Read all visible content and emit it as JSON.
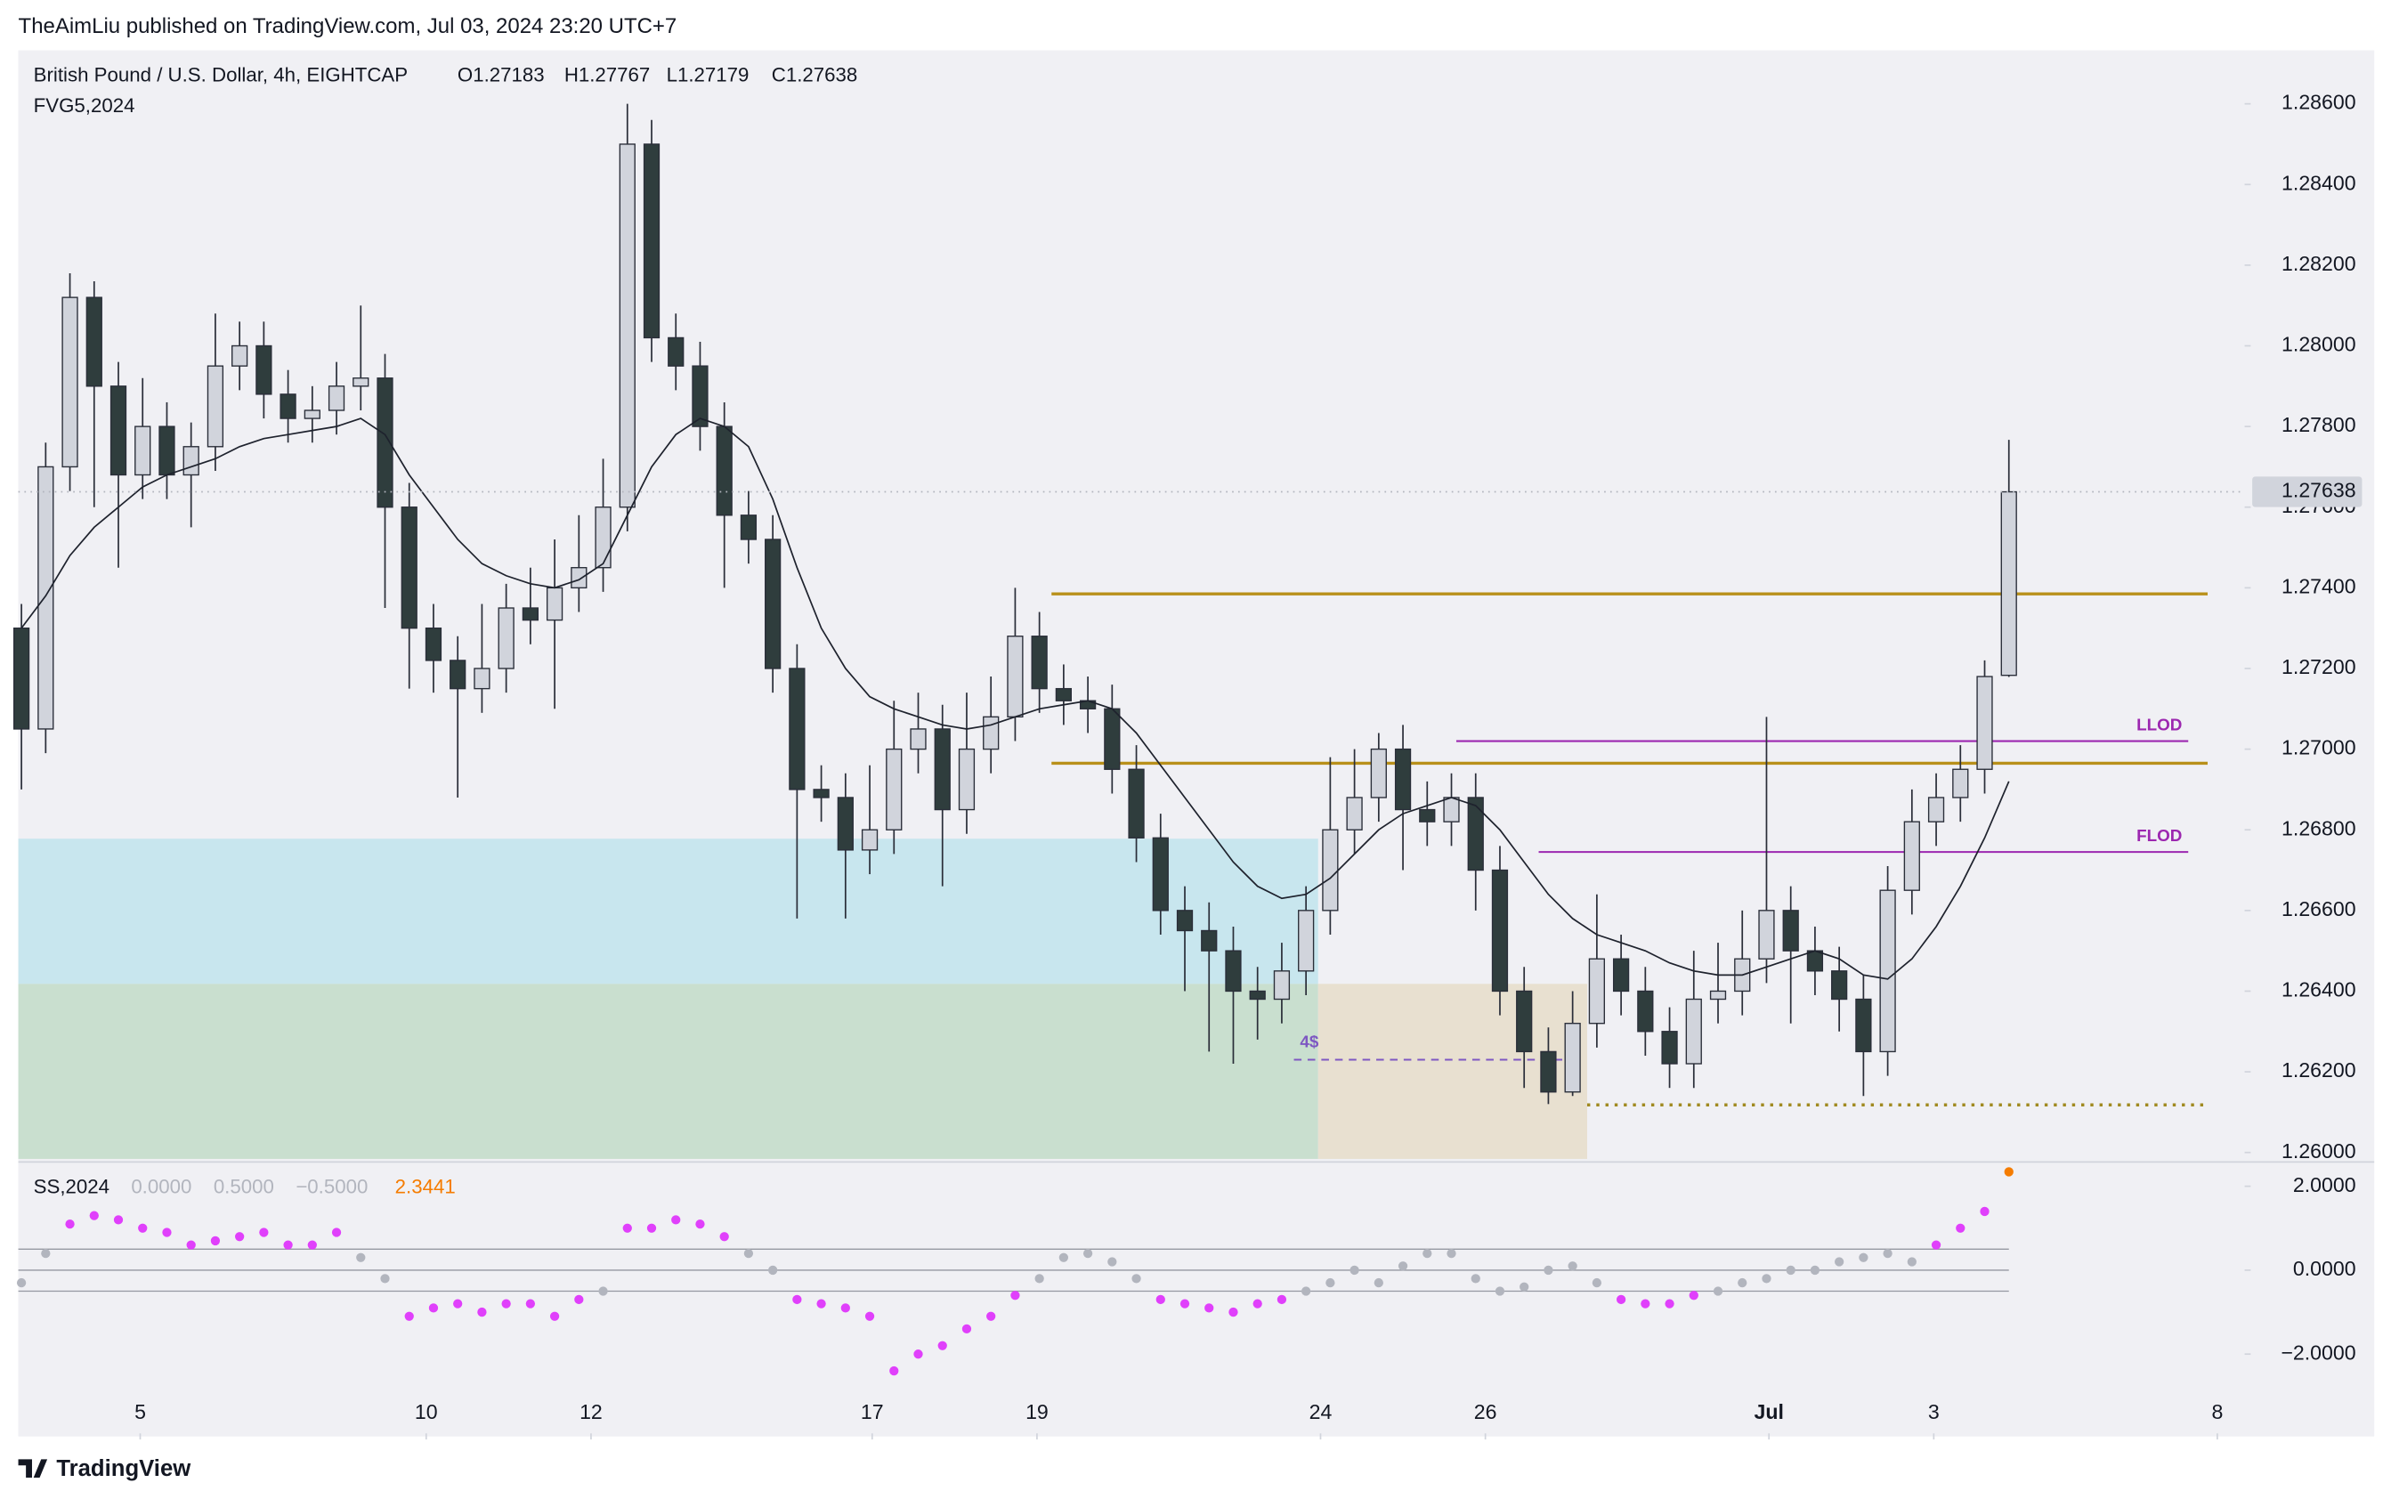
{
  "header": {
    "publisher": "TheAimLiu published on TradingView.com, Jul 03, 2024 23:20 UTC+7",
    "symbol": "British Pound / U.S. Dollar, 4h, EIGHTCAP",
    "ohlc": [
      "O1.27183",
      "H1.27767",
      "L1.27179",
      "C1.27638"
    ],
    "indicator": "FVG5,2024",
    "footer": "TradingView"
  },
  "chart_data": [
    {
      "type": "candlestick",
      "colors": {
        "up": "#d1d4dc",
        "down": "#2f3d3d",
        "outline": "#2a2e39"
      },
      "open": [
        1.273,
        1.2705,
        1.277,
        1.2812,
        1.279,
        1.2768,
        1.278,
        1.2768,
        1.2775,
        1.2795,
        1.28,
        1.2788,
        1.2782,
        1.2784,
        1.279,
        1.2792,
        1.276,
        1.273,
        1.2722,
        1.2715,
        1.272,
        1.2735,
        1.2732,
        1.274,
        1.2745,
        1.276,
        1.285,
        1.2802,
        1.2795,
        1.278,
        1.2758,
        1.2752,
        1.272,
        1.269,
        1.2688,
        1.2675,
        1.268,
        1.27,
        1.2705,
        1.2685,
        1.27,
        1.2708,
        1.2728,
        1.2715,
        1.2712,
        1.271,
        1.2695,
        1.2678,
        1.266,
        1.2655,
        1.265,
        1.264,
        1.2638,
        1.2645,
        1.266,
        1.268,
        1.2688,
        1.27,
        1.2685,
        1.2682,
        1.2688,
        1.267,
        1.264,
        1.2625,
        1.2615,
        1.2632,
        1.2648,
        1.264,
        1.263,
        1.2622,
        1.2638,
        1.264,
        1.2648,
        1.266,
        1.265,
        1.2645,
        1.2638,
        1.2625,
        1.2665,
        1.2682,
        1.2688,
        1.2695,
        1.27183
      ],
      "high": [
        1.2736,
        1.2776,
        1.2818,
        1.2816,
        1.2796,
        1.2792,
        1.2786,
        1.2781,
        1.2808,
        1.2806,
        1.2806,
        1.2794,
        1.279,
        1.2796,
        1.281,
        1.2798,
        1.2766,
        1.2736,
        1.2728,
        1.2736,
        1.2741,
        1.2745,
        1.2752,
        1.2758,
        1.2772,
        1.286,
        1.2856,
        1.2808,
        1.2801,
        1.2786,
        1.2764,
        1.2758,
        1.2726,
        1.2696,
        1.2694,
        1.2696,
        1.2712,
        1.2714,
        1.2711,
        1.2714,
        1.2718,
        1.274,
        1.2734,
        1.2721,
        1.2718,
        1.2716,
        1.2701,
        1.2684,
        1.2666,
        1.2662,
        1.2656,
        1.2646,
        1.2652,
        1.2666,
        1.2698,
        1.27,
        1.2704,
        1.2706,
        1.2692,
        1.2694,
        1.2694,
        1.2676,
        1.2646,
        1.2631,
        1.264,
        1.2664,
        1.2654,
        1.2646,
        1.2636,
        1.265,
        1.2652,
        1.266,
        1.2708,
        1.2666,
        1.2656,
        1.2651,
        1.2644,
        1.2671,
        1.269,
        1.2694,
        1.2701,
        1.2722,
        1.27767
      ],
      "low": [
        1.269,
        1.2699,
        1.2764,
        1.276,
        1.2745,
        1.2762,
        1.2762,
        1.2755,
        1.2769,
        1.2789,
        1.2782,
        1.2776,
        1.2776,
        1.2778,
        1.2784,
        1.2735,
        1.2715,
        1.2714,
        1.2688,
        1.2709,
        1.2714,
        1.2726,
        1.271,
        1.2734,
        1.2739,
        1.2754,
        1.2796,
        1.2789,
        1.2774,
        1.274,
        1.2746,
        1.2714,
        1.2658,
        1.2682,
        1.2658,
        1.2669,
        1.2674,
        1.2694,
        1.2666,
        1.2679,
        1.2694,
        1.2702,
        1.2709,
        1.2706,
        1.2704,
        1.2689,
        1.2672,
        1.2654,
        1.264,
        1.2625,
        1.2622,
        1.2628,
        1.2632,
        1.2639,
        1.2654,
        1.2674,
        1.2682,
        1.267,
        1.2676,
        1.2676,
        1.266,
        1.2634,
        1.2616,
        1.2612,
        1.2614,
        1.2626,
        1.2634,
        1.2624,
        1.2616,
        1.2616,
        1.2632,
        1.2634,
        1.2642,
        1.2632,
        1.2639,
        1.263,
        1.2614,
        1.2619,
        1.2659,
        1.2676,
        1.2682,
        1.2689,
        1.27179
      ],
      "close": [
        1.2705,
        1.277,
        1.2812,
        1.279,
        1.2768,
        1.278,
        1.2768,
        1.2775,
        1.2795,
        1.28,
        1.2788,
        1.2782,
        1.2784,
        1.279,
        1.2792,
        1.276,
        1.273,
        1.2722,
        1.2715,
        1.272,
        1.2735,
        1.2732,
        1.274,
        1.2745,
        1.276,
        1.285,
        1.2802,
        1.2795,
        1.278,
        1.2758,
        1.2752,
        1.272,
        1.269,
        1.2688,
        1.2675,
        1.268,
        1.27,
        1.2705,
        1.2685,
        1.27,
        1.2708,
        1.2728,
        1.2715,
        1.2712,
        1.271,
        1.2695,
        1.2678,
        1.266,
        1.2655,
        1.265,
        1.264,
        1.2638,
        1.2645,
        1.266,
        1.268,
        1.2688,
        1.27,
        1.2685,
        1.2682,
        1.2688,
        1.267,
        1.264,
        1.2625,
        1.2615,
        1.2632,
        1.2648,
        1.264,
        1.263,
        1.2622,
        1.2638,
        1.264,
        1.2648,
        1.266,
        1.265,
        1.2645,
        1.2638,
        1.2625,
        1.2665,
        1.2682,
        1.2688,
        1.2695,
        1.2718,
        1.27638
      ],
      "ma": {
        "color": "#1e222d",
        "values": [
          1.273,
          1.2738,
          1.2748,
          1.2755,
          1.276,
          1.2765,
          1.2768,
          1.277,
          1.2772,
          1.2775,
          1.2777,
          1.2778,
          1.2779,
          1.278,
          1.2782,
          1.2778,
          1.2768,
          1.276,
          1.2752,
          1.2746,
          1.2743,
          1.2741,
          1.274,
          1.2742,
          1.2746,
          1.2758,
          1.277,
          1.2778,
          1.2782,
          1.278,
          1.2775,
          1.2762,
          1.2745,
          1.273,
          1.272,
          1.2713,
          1.271,
          1.2708,
          1.2706,
          1.2705,
          1.2706,
          1.2708,
          1.271,
          1.2711,
          1.2712,
          1.271,
          1.2704,
          1.2696,
          1.2688,
          1.268,
          1.2672,
          1.2666,
          1.2663,
          1.2664,
          1.2668,
          1.2674,
          1.268,
          1.2684,
          1.2686,
          1.2688,
          1.2686,
          1.268,
          1.2672,
          1.2664,
          1.2658,
          1.2654,
          1.2652,
          1.265,
          1.2647,
          1.2645,
          1.2644,
          1.2644,
          1.2646,
          1.2648,
          1.265,
          1.2648,
          1.2644,
          1.2643,
          1.2648,
          1.2656,
          1.2666,
          1.2678,
          1.2692
        ]
      },
      "xlim": [
        -0.13,
        91.6
      ],
      "ylim": [
        1.25984,
        1.28725
      ],
      "xticks": [
        {
          "value": 4.9,
          "label": "5"
        },
        {
          "value": 16.7,
          "label": "10"
        },
        {
          "value": 23.5,
          "label": "12"
        },
        {
          "value": 35.1,
          "label": "17"
        },
        {
          "value": 41.9,
          "label": "19"
        },
        {
          "value": 53.6,
          "label": "24"
        },
        {
          "value": 60.4,
          "label": "26"
        },
        {
          "value": 72.1,
          "label": "Jul"
        },
        {
          "value": 78.9,
          "label": "3"
        },
        {
          "value": 90.6,
          "label": "8"
        }
      ],
      "yticks": [
        {
          "value": 1.26,
          "label": "1.26000"
        },
        {
          "value": 1.262,
          "label": "1.26200"
        },
        {
          "value": 1.264,
          "label": "1.26400"
        },
        {
          "value": 1.266,
          "label": "1.26600"
        },
        {
          "value": 1.268,
          "label": "1.26800"
        },
        {
          "value": 1.27,
          "label": "1.27000"
        },
        {
          "value": 1.272,
          "label": "1.27200"
        },
        {
          "value": 1.274,
          "label": "1.27400"
        },
        {
          "value": 1.276,
          "label": "1.27600"
        },
        {
          "value": 1.278,
          "label": "1.27800"
        },
        {
          "value": 1.28,
          "label": "1.28000"
        },
        {
          "value": 1.282,
          "label": "1.28200"
        },
        {
          "value": 1.284,
          "label": "1.28400"
        },
        {
          "value": 1.286,
          "label": "1.28600"
        }
      ],
      "zones": [
        {
          "from": -0.13,
          "to": 53.5,
          "low": 1.26418,
          "high": 1.26778,
          "color": "#c8e6ee"
        },
        {
          "from": -0.13,
          "to": 53.5,
          "low": 1.25984,
          "high": 1.26418,
          "color": "#c9dfcf"
        },
        {
          "from": 53.5,
          "to": 64.6,
          "low": 1.25984,
          "high": 1.26418,
          "color": "#e8e0d0"
        }
      ],
      "hlines": [
        {
          "value": 1.27385,
          "from": 42.5,
          "to": 90.2,
          "color": "#b8901a",
          "dash": "none"
        },
        {
          "value": 1.26965,
          "from": 42.5,
          "to": 90.2,
          "color": "#b8901a",
          "dash": "none"
        },
        {
          "name": "LLOD",
          "value": 1.2702,
          "from": 59.2,
          "to": 89.4,
          "color": "#9c27b0",
          "dash": "none"
        },
        {
          "name": "FLOD",
          "value": 1.26745,
          "from": 62.6,
          "to": 89.4,
          "color": "#9c27b0",
          "dash": "none"
        },
        {
          "value": 1.26118,
          "from": 64.6,
          "to": 90.2,
          "color": "#a08a20",
          "dash": "2 4"
        },
        {
          "name": "4$",
          "value": 1.2623,
          "from": 52.5,
          "to": 63.6,
          "color": "#7e57c2",
          "dash": "5 4"
        }
      ]
    },
    {
      "type": "dots",
      "name": "SS,2024",
      "colors": {
        "strong": "#e040fb",
        "weak": "#b2b5be"
      },
      "levels": [
        {
          "value": 0,
          "label": "0.0000"
        },
        {
          "value": 0.5,
          "label": "0.5000"
        },
        {
          "value": -0.5,
          "label": "−0.5000"
        }
      ],
      "values": [
        -0.3,
        0.4,
        1.1,
        1.3,
        1.2,
        1.0,
        0.9,
        0.6,
        0.7,
        0.8,
        0.9,
        0.6,
        0.6,
        0.9,
        0.3,
        -0.2,
        -1.1,
        -0.9,
        -0.8,
        -1.0,
        -0.8,
        -0.8,
        -1.1,
        -0.7,
        -0.5,
        1.0,
        1.0,
        1.2,
        1.1,
        0.8,
        0.4,
        0.0,
        -0.7,
        -0.8,
        -0.9,
        -1.1,
        -2.4,
        -2.0,
        -1.8,
        -1.4,
        -1.1,
        -0.6,
        -0.2,
        0.3,
        0.4,
        0.2,
        -0.2,
        -0.7,
        -0.8,
        -0.9,
        -1.0,
        -0.8,
        -0.7,
        -0.5,
        -0.3,
        0.0,
        -0.3,
        0.1,
        0.4,
        0.4,
        -0.2,
        -0.5,
        -0.4,
        0.0,
        0.1,
        -0.3,
        -0.7,
        -0.8,
        -0.8,
        -0.6,
        -0.5,
        -0.3,
        -0.2,
        0.0,
        0.0,
        0.2,
        0.3,
        0.4,
        0.2,
        0.6,
        1.0,
        1.4,
        2.3441
      ],
      "ylim": [
        -3.89,
        2.47
      ],
      "yticks": [
        {
          "value": 2,
          "label": "2.0000"
        },
        {
          "value": 0,
          "label": "0.0000"
        },
        {
          "value": -2,
          "label": "−2.0000"
        }
      ]
    }
  ]
}
